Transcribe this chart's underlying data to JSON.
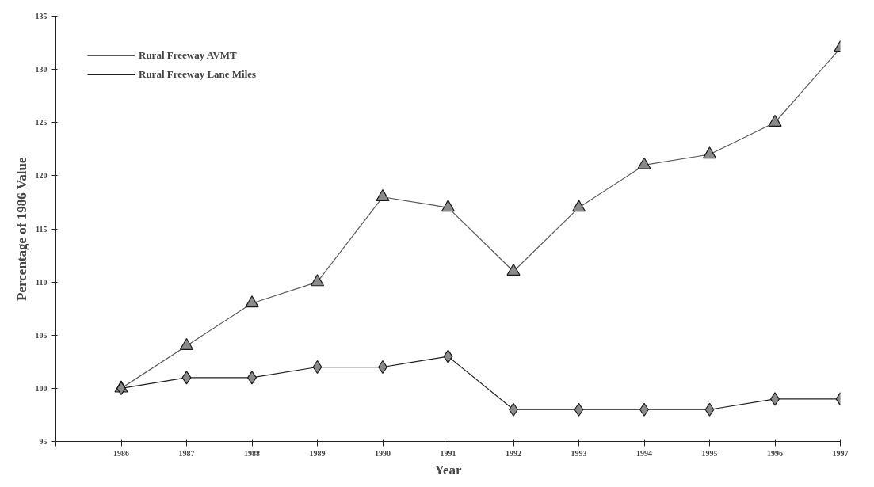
{
  "chart_data": {
    "type": "line",
    "xlabel": "Year",
    "ylabel": "Percentage of 1986 Value",
    "x": [
      1986,
      1987,
      1988,
      1989,
      1990,
      1991,
      1992,
      1993,
      1994,
      1995,
      1996,
      1997
    ],
    "xlim": [
      1985,
      1997
    ],
    "xticks": [
      {
        "value": 1985,
        "label": null
      },
      1986,
      1987,
      1988,
      1989,
      1990,
      1991,
      1992,
      1993,
      1994,
      1995,
      1996,
      1997
    ],
    "ylim": [
      95,
      135
    ],
    "yticks": [
      95,
      100,
      105,
      110,
      115,
      120,
      125,
      130,
      135
    ],
    "series": [
      {
        "name": "Rural Freeway AVMT",
        "color": "#5a5a5a",
        "marker": "triangle",
        "values": [
          100,
          104,
          108,
          110,
          118,
          117,
          111,
          117,
          121,
          122,
          125,
          132
        ]
      },
      {
        "name": "Rural Freeway Lane Miles",
        "color": "#1e1e1e",
        "marker": "diamond",
        "values": [
          100,
          101,
          101,
          102,
          102,
          103,
          98,
          98,
          98,
          98,
          99,
          99
        ]
      }
    ],
    "grid": false,
    "legend": "top left",
    "line_style": "solid"
  }
}
